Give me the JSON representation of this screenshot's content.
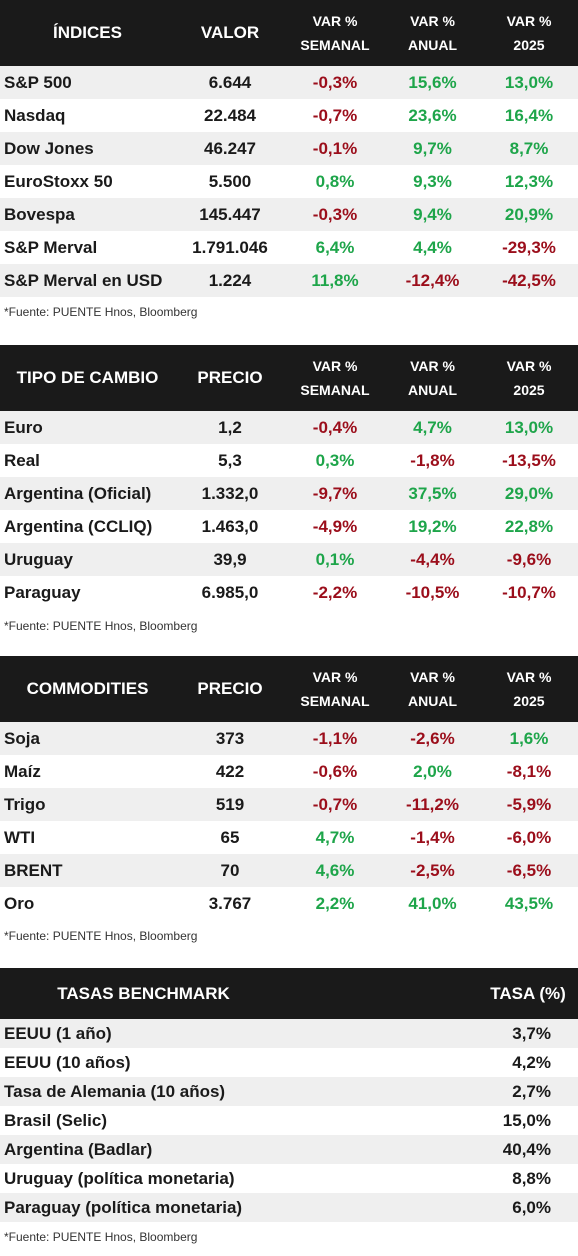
{
  "tables": [
    {
      "header": {
        "col1": "ÍNDICES",
        "col2": "VALOR",
        "col3a": "VAR %",
        "col3b": "SEMANAL",
        "col4a": "VAR %",
        "col4b": "ANUAL",
        "col5a": "VAR %",
        "col5b": "2025"
      },
      "rows": [
        {
          "name": "S&P 500",
          "value": "6.644",
          "weekly": "-0,3%",
          "annual": "15,6%",
          "ytd": "13,0%"
        },
        {
          "name": "Nasdaq",
          "value": "22.484",
          "weekly": "-0,7%",
          "annual": "23,6%",
          "ytd": "16,4%"
        },
        {
          "name": "Dow Jones",
          "value": "46.247",
          "weekly": "-0,1%",
          "annual": "9,7%",
          "ytd": "8,7%"
        },
        {
          "name": "EuroStoxx 50",
          "value": "5.500",
          "weekly": "0,8%",
          "annual": "9,3%",
          "ytd": "12,3%"
        },
        {
          "name": "Bovespa",
          "value": "145.447",
          "weekly": "-0,3%",
          "annual": "9,4%",
          "ytd": "20,9%"
        },
        {
          "name": "S&P Merval",
          "value": "1.791.046",
          "weekly": "6,4%",
          "annual": "4,4%",
          "ytd": "-29,3%"
        },
        {
          "name": "S&P Merval en USD",
          "value": "1.224",
          "weekly": "11,8%",
          "annual": "-12,4%",
          "ytd": "-42,5%"
        }
      ],
      "source": "*Fuente: PUENTE Hnos, Bloomberg"
    },
    {
      "header": {
        "col1": "TIPO DE CAMBIO",
        "col2": "PRECIO",
        "col3a": "VAR %",
        "col3b": "SEMANAL",
        "col4a": "VAR %",
        "col4b": "ANUAL",
        "col5a": "VAR %",
        "col5b": "2025"
      },
      "rows": [
        {
          "name": "Euro",
          "value": "1,2",
          "weekly": "-0,4%",
          "annual": "4,7%",
          "ytd": "13,0%"
        },
        {
          "name": "Real",
          "value": "5,3",
          "weekly": "0,3%",
          "annual": "-1,8%",
          "ytd": "-13,5%"
        },
        {
          "name": "Argentina (Oficial)",
          "value": "1.332,0",
          "weekly": "-9,7%",
          "annual": "37,5%",
          "ytd": "29,0%"
        },
        {
          "name": "Argentina (CCLIQ)",
          "value": "1.463,0",
          "weekly": "-4,9%",
          "annual": "19,2%",
          "ytd": "22,8%"
        },
        {
          "name": "Uruguay",
          "value": "39,9",
          "weekly": "0,1%",
          "annual": "-4,4%",
          "ytd": "-9,6%"
        },
        {
          "name": "Paraguay",
          "value": "6.985,0",
          "weekly": "-2,2%",
          "annual": "-10,5%",
          "ytd": "-10,7%"
        }
      ],
      "source": "*Fuente: PUENTE Hnos, Bloomberg"
    },
    {
      "header": {
        "col1": "COMMODITIES",
        "col2": "PRECIO",
        "col3a": "VAR %",
        "col3b": "SEMANAL",
        "col4a": "VAR %",
        "col4b": "ANUAL",
        "col5a": "VAR %",
        "col5b": "2025"
      },
      "rows": [
        {
          "name": "Soja",
          "value": "373",
          "weekly": "-1,1%",
          "annual": "-2,6%",
          "ytd": "1,6%"
        },
        {
          "name": "Maíz",
          "value": "422",
          "weekly": "-0,6%",
          "annual": "2,0%",
          "ytd": "-8,1%"
        },
        {
          "name": "Trigo",
          "value": "519",
          "weekly": "-0,7%",
          "annual": "-11,2%",
          "ytd": "-5,9%"
        },
        {
          "name": "WTI",
          "value": "65",
          "weekly": "4,7%",
          "annual": "-1,4%",
          "ytd": "-6,0%"
        },
        {
          "name": "BRENT",
          "value": "70",
          "weekly": "4,6%",
          "annual": "-2,5%",
          "ytd": "-6,5%"
        },
        {
          "name": "Oro",
          "value": "3.767",
          "weekly": "2,2%",
          "annual": "41,0%",
          "ytd": "43,5%"
        }
      ],
      "source": "*Fuente: PUENTE Hnos, Bloomberg"
    }
  ],
  "rates": {
    "header": {
      "col1": "TASAS BENCHMARK",
      "col2": "TASA (%)"
    },
    "rows": [
      {
        "name": "EEUU (1 año)",
        "value": "3,7%"
      },
      {
        "name": "EEUU (10 años)",
        "value": "4,2%"
      },
      {
        "name": "Tasa de Alemania (10 años)",
        "value": "2,7%"
      },
      {
        "name": "Brasil (Selic)",
        "value": "15,0%"
      },
      {
        "name": "Argentina (Badlar)",
        "value": "40,4%"
      },
      {
        "name": "Uruguay (política monetaria)",
        "value": "8,8%"
      },
      {
        "name": "Paraguay (política monetaria)",
        "value": "6,0%"
      }
    ],
    "source": "*Fuente: PUENTE Hnos, Bloomberg"
  },
  "colors": {
    "positive": "#1ea54a",
    "negative": "#9b0e1b",
    "header_bg": "#1a1a1a",
    "row_alt": "#efefef"
  }
}
